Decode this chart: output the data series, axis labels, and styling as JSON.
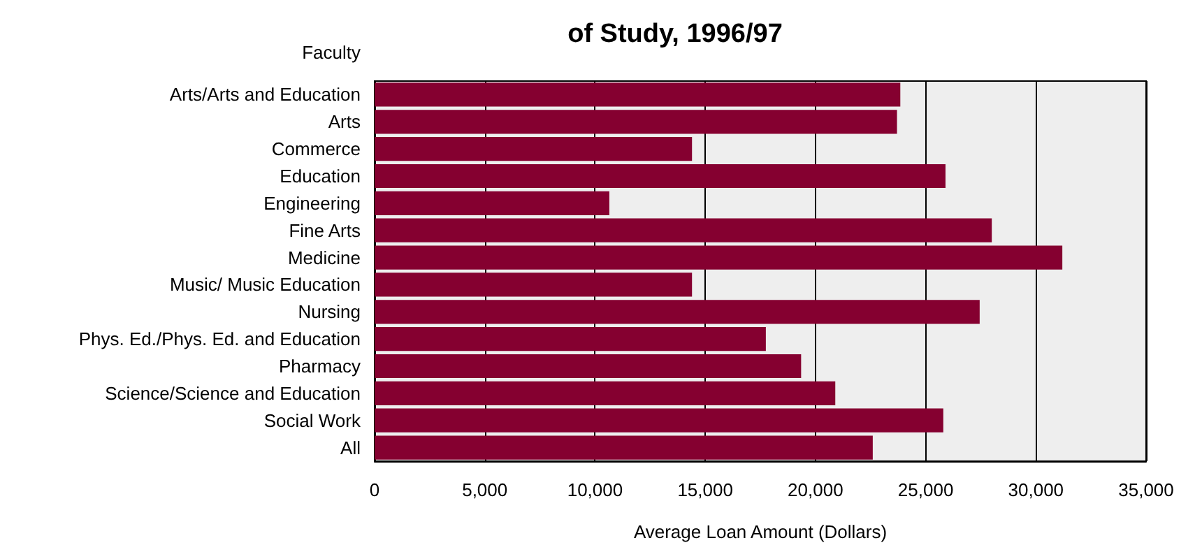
{
  "chart_data": {
    "type": "bar",
    "orientation": "horizontal",
    "title": "of Study, 1996/97",
    "ylabel": "Faculty",
    "xlabel": "Average Loan Amount (Dollars)",
    "categories": [
      "Arts/Arts and Education",
      "Arts",
      "Commerce",
      "Education",
      "Engineering",
      "Fine Arts",
      "Medicine",
      "Music/ Music Education",
      "Nursing",
      "Phys. Ed./Phys. Ed. and Education",
      "Pharmacy",
      "Science/Science and Education",
      "Social Work",
      "All"
    ],
    "values": [
      23850,
      23700,
      14400,
      25900,
      10650,
      28000,
      31200,
      14400,
      27450,
      17750,
      19350,
      20900,
      25800,
      22600
    ],
    "color": "#850030",
    "xlim": [
      0,
      35000
    ],
    "xticks": [
      0,
      {
        "value": 5000,
        "label": "5,000"
      },
      {
        "value": 10000,
        "label": "10,000"
      },
      {
        "value": 15000,
        "label": "15,000"
      },
      {
        "value": 20000,
        "label": "20,000"
      },
      {
        "value": 25000,
        "label": "25,000"
      },
      {
        "value": 30000,
        "label": "30,000"
      },
      {
        "value": 35000,
        "label": "35,000"
      }
    ],
    "grid": "x"
  }
}
